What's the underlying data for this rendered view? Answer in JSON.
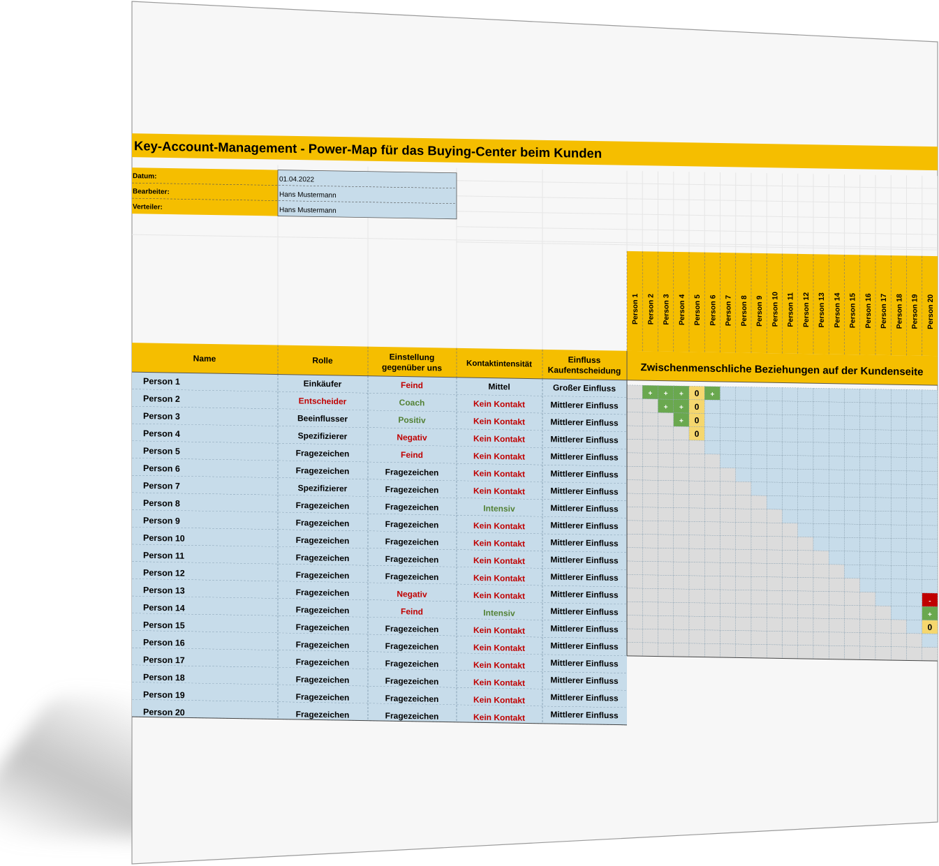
{
  "title": "Key-Account-Management - Power-Map für das Buying-Center beim Kunden",
  "meta": [
    {
      "label": "Datum:",
      "value": "01.04.2022"
    },
    {
      "label": "Bearbeiter:",
      "value": "Hans Mustermann"
    },
    {
      "label": "Verteiler:",
      "value": "Hans Mustermann"
    }
  ],
  "headers": {
    "name": "Name",
    "rolle": "Rolle",
    "einstellung": [
      "Einstellung",
      "gegenüber uns"
    ],
    "kontakt": "Kontaktintensität",
    "einfluss": [
      "Einfluss",
      "Kaufentscheidung"
    ],
    "matrix": "Zwischenmenschliche Beziehungen auf der Kundenseite"
  },
  "matrix_columns": [
    "Person 1",
    "Person 2",
    "Person 3",
    "Person 4",
    "Person 5",
    "Person 6",
    "Person 7",
    "Person 8",
    "Person 9",
    "Person 10",
    "Person 11",
    "Person 12",
    "Person 13",
    "Person 14",
    "Person 15",
    "Person 16",
    "Person 17",
    "Person 18",
    "Person 19",
    "Person 20"
  ],
  "rows": [
    {
      "name": "Person 1",
      "rolle": "Einkäufer",
      "einstellung": "Feind",
      "kontakt": "Mittel",
      "einfluss": "Großer Einfluss"
    },
    {
      "name": "Person 2",
      "rolle": "Entscheider",
      "einstellung": "Coach",
      "kontakt": "Kein Kontakt",
      "einfluss": "Mittlerer Einfluss"
    },
    {
      "name": "Person 3",
      "rolle": "Beeinflusser",
      "einstellung": "Positiv",
      "kontakt": "Kein Kontakt",
      "einfluss": "Mittlerer Einfluss"
    },
    {
      "name": "Person 4",
      "rolle": "Spezifizierer",
      "einstellung": "Negativ",
      "kontakt": "Kein Kontakt",
      "einfluss": "Mittlerer Einfluss"
    },
    {
      "name": "Person 5",
      "rolle": "Fragezeichen",
      "einstellung": "Feind",
      "kontakt": "Kein Kontakt",
      "einfluss": "Mittlerer Einfluss"
    },
    {
      "name": "Person 6",
      "rolle": "Fragezeichen",
      "einstellung": "Fragezeichen",
      "kontakt": "Kein Kontakt",
      "einfluss": "Mittlerer Einfluss"
    },
    {
      "name": "Person 7",
      "rolle": "Spezifizierer",
      "einstellung": "Fragezeichen",
      "kontakt": "Kein Kontakt",
      "einfluss": "Mittlerer Einfluss"
    },
    {
      "name": "Person 8",
      "rolle": "Fragezeichen",
      "einstellung": "Fragezeichen",
      "kontakt": "Intensiv",
      "einfluss": "Mittlerer Einfluss"
    },
    {
      "name": "Person 9",
      "rolle": "Fragezeichen",
      "einstellung": "Fragezeichen",
      "kontakt": "Kein Kontakt",
      "einfluss": "Mittlerer Einfluss"
    },
    {
      "name": "Person 10",
      "rolle": "Fragezeichen",
      "einstellung": "Fragezeichen",
      "kontakt": "Kein Kontakt",
      "einfluss": "Mittlerer Einfluss"
    },
    {
      "name": "Person 11",
      "rolle": "Fragezeichen",
      "einstellung": "Fragezeichen",
      "kontakt": "Kein Kontakt",
      "einfluss": "Mittlerer Einfluss"
    },
    {
      "name": "Person 12",
      "rolle": "Fragezeichen",
      "einstellung": "Fragezeichen",
      "kontakt": "Kein Kontakt",
      "einfluss": "Mittlerer Einfluss"
    },
    {
      "name": "Person 13",
      "rolle": "Fragezeichen",
      "einstellung": "Negativ",
      "kontakt": "Kein Kontakt",
      "einfluss": "Mittlerer Einfluss"
    },
    {
      "name": "Person 14",
      "rolle": "Fragezeichen",
      "einstellung": "Feind",
      "kontakt": "Intensiv",
      "einfluss": "Mittlerer Einfluss"
    },
    {
      "name": "Person 15",
      "rolle": "Fragezeichen",
      "einstellung": "Fragezeichen",
      "kontakt": "Kein Kontakt",
      "einfluss": "Mittlerer Einfluss"
    },
    {
      "name": "Person 16",
      "rolle": "Fragezeichen",
      "einstellung": "Fragezeichen",
      "kontakt": "Kein Kontakt",
      "einfluss": "Mittlerer Einfluss"
    },
    {
      "name": "Person 17",
      "rolle": "Fragezeichen",
      "einstellung": "Fragezeichen",
      "kontakt": "Kein Kontakt",
      "einfluss": "Mittlerer Einfluss"
    },
    {
      "name": "Person 18",
      "rolle": "Fragezeichen",
      "einstellung": "Fragezeichen",
      "kontakt": "Kein Kontakt",
      "einfluss": "Mittlerer Einfluss"
    },
    {
      "name": "Person 19",
      "rolle": "Fragezeichen",
      "einstellung": "Fragezeichen",
      "kontakt": "Kein Kontakt",
      "einfluss": "Mittlerer Einfluss"
    },
    {
      "name": "Person 20",
      "rolle": "Fragezeichen",
      "einstellung": "Fragezeichen",
      "kontakt": "Kein Kontakt",
      "einfluss": "Mittlerer Einfluss"
    }
  ],
  "relations": [
    {
      "row": 1,
      "col": 2,
      "value": "+"
    },
    {
      "row": 1,
      "col": 3,
      "value": "+"
    },
    {
      "row": 1,
      "col": 4,
      "value": "+"
    },
    {
      "row": 1,
      "col": 5,
      "value": "0"
    },
    {
      "row": 1,
      "col": 6,
      "value": "+"
    },
    {
      "row": 2,
      "col": 3,
      "value": "+"
    },
    {
      "row": 2,
      "col": 4,
      "value": "+"
    },
    {
      "row": 2,
      "col": 5,
      "value": "0"
    },
    {
      "row": 3,
      "col": 4,
      "value": "+"
    },
    {
      "row": 3,
      "col": 5,
      "value": "0"
    },
    {
      "row": 4,
      "col": 5,
      "value": "0"
    },
    {
      "row": 16,
      "col": 20,
      "value": "-"
    },
    {
      "row": 17,
      "col": 20,
      "value": "+"
    },
    {
      "row": 18,
      "col": 20,
      "value": "0"
    }
  ],
  "text_colors": {
    "Feind": "#c00000",
    "Negativ": "#c00000",
    "Entscheider": "#c00000",
    "Kein Kontakt": "#c00000",
    "Coach": "#538135",
    "Positiv": "#538135",
    "Intensiv": "#538135"
  },
  "colors": {
    "accent": "#f5be00",
    "row_fill": "#c7dcea",
    "grey_cell": "#dcdcdc",
    "plus_cell": "#6aa84f",
    "zero_cell": "#f5d76e",
    "minus_cell": "#c00000"
  }
}
